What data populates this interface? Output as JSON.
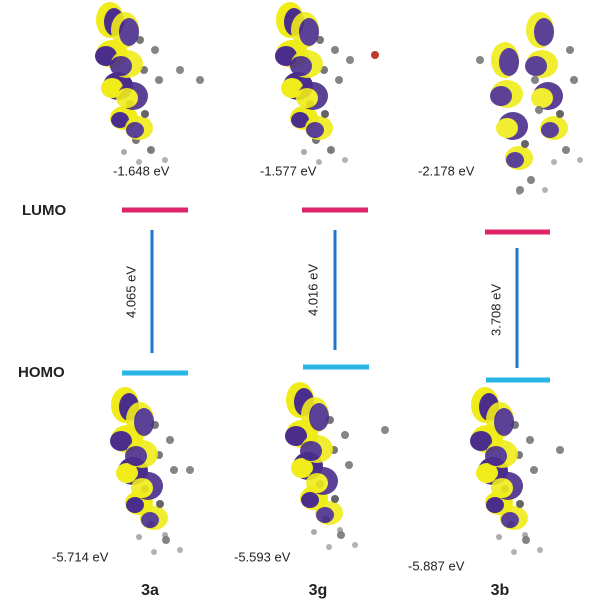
{
  "levels": {
    "lumo": "LUMO",
    "homo": "HOMO"
  },
  "compounds": [
    {
      "name": "3a",
      "lumo_energy": "-1.648 eV",
      "homo_energy": "-5.714 eV",
      "gap": "4.065 eV"
    },
    {
      "name": "3g",
      "lumo_energy": "-1.577 eV",
      "homo_energy": "-5.593 eV",
      "gap": "4.016 eV"
    },
    {
      "name": "3b",
      "lumo_energy": "-2.178 eV",
      "homo_energy": "-5.887 eV",
      "gap": "3.708 eV"
    }
  ]
}
